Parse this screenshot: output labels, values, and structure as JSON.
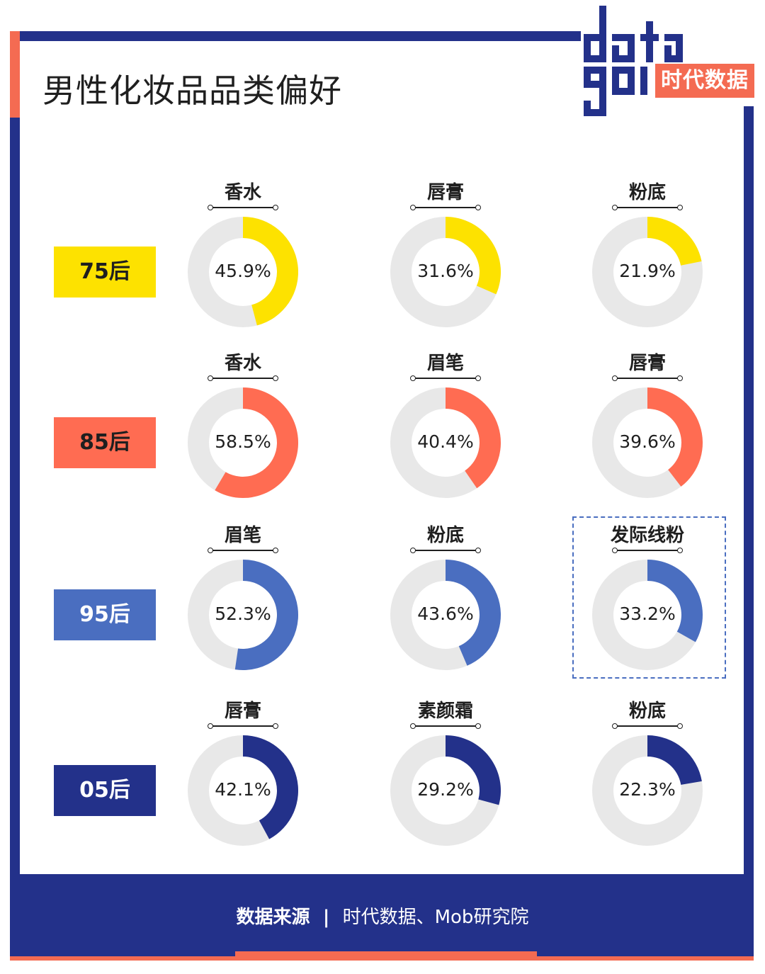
{
  "title": "男性化妆品品类偏好",
  "logo": {
    "word": "data good",
    "cn": "时代数据"
  },
  "footer": {
    "source_label": "数据来源",
    "separator": "|",
    "source_text": "时代数据、Mob研究院"
  },
  "colors": {
    "track": "#e8e8e8",
    "navy": "#23318a",
    "coral": "#f46b52"
  },
  "chart_data": {
    "type": "pie",
    "rows": [
      {
        "group": "75后",
        "color": "#fde200",
        "text_color": "#1f1f1f",
        "items": [
          {
            "category": "香水",
            "value": 45.9,
            "label": "45.9%"
          },
          {
            "category": "唇膏",
            "value": 31.6,
            "label": "31.6%"
          },
          {
            "category": "粉底",
            "value": 21.9,
            "label": "21.9%"
          }
        ]
      },
      {
        "group": "85后",
        "color": "#ff6c52",
        "text_color": "#1f1f1f",
        "items": [
          {
            "category": "香水",
            "value": 58.5,
            "label": "58.5%"
          },
          {
            "category": "眉笔",
            "value": 40.4,
            "label": "40.4%"
          },
          {
            "category": "唇膏",
            "value": 39.6,
            "label": "39.6%"
          }
        ]
      },
      {
        "group": "95后",
        "color": "#4a6ec0",
        "text_color": "#ffffff",
        "items": [
          {
            "category": "眉笔",
            "value": 52.3,
            "label": "52.3%"
          },
          {
            "category": "粉底",
            "value": 43.6,
            "label": "43.6%"
          },
          {
            "category": "发际线粉",
            "value": 33.2,
            "label": "33.2%",
            "highlighted": true
          }
        ]
      },
      {
        "group": "05后",
        "color": "#23318a",
        "text_color": "#ffffff",
        "items": [
          {
            "category": "唇膏",
            "value": 42.1,
            "label": "42.1%"
          },
          {
            "category": "素颜霜",
            "value": 29.2,
            "label": "29.2%"
          },
          {
            "category": "粉底",
            "value": 22.3,
            "label": "22.3%"
          }
        ]
      }
    ]
  }
}
